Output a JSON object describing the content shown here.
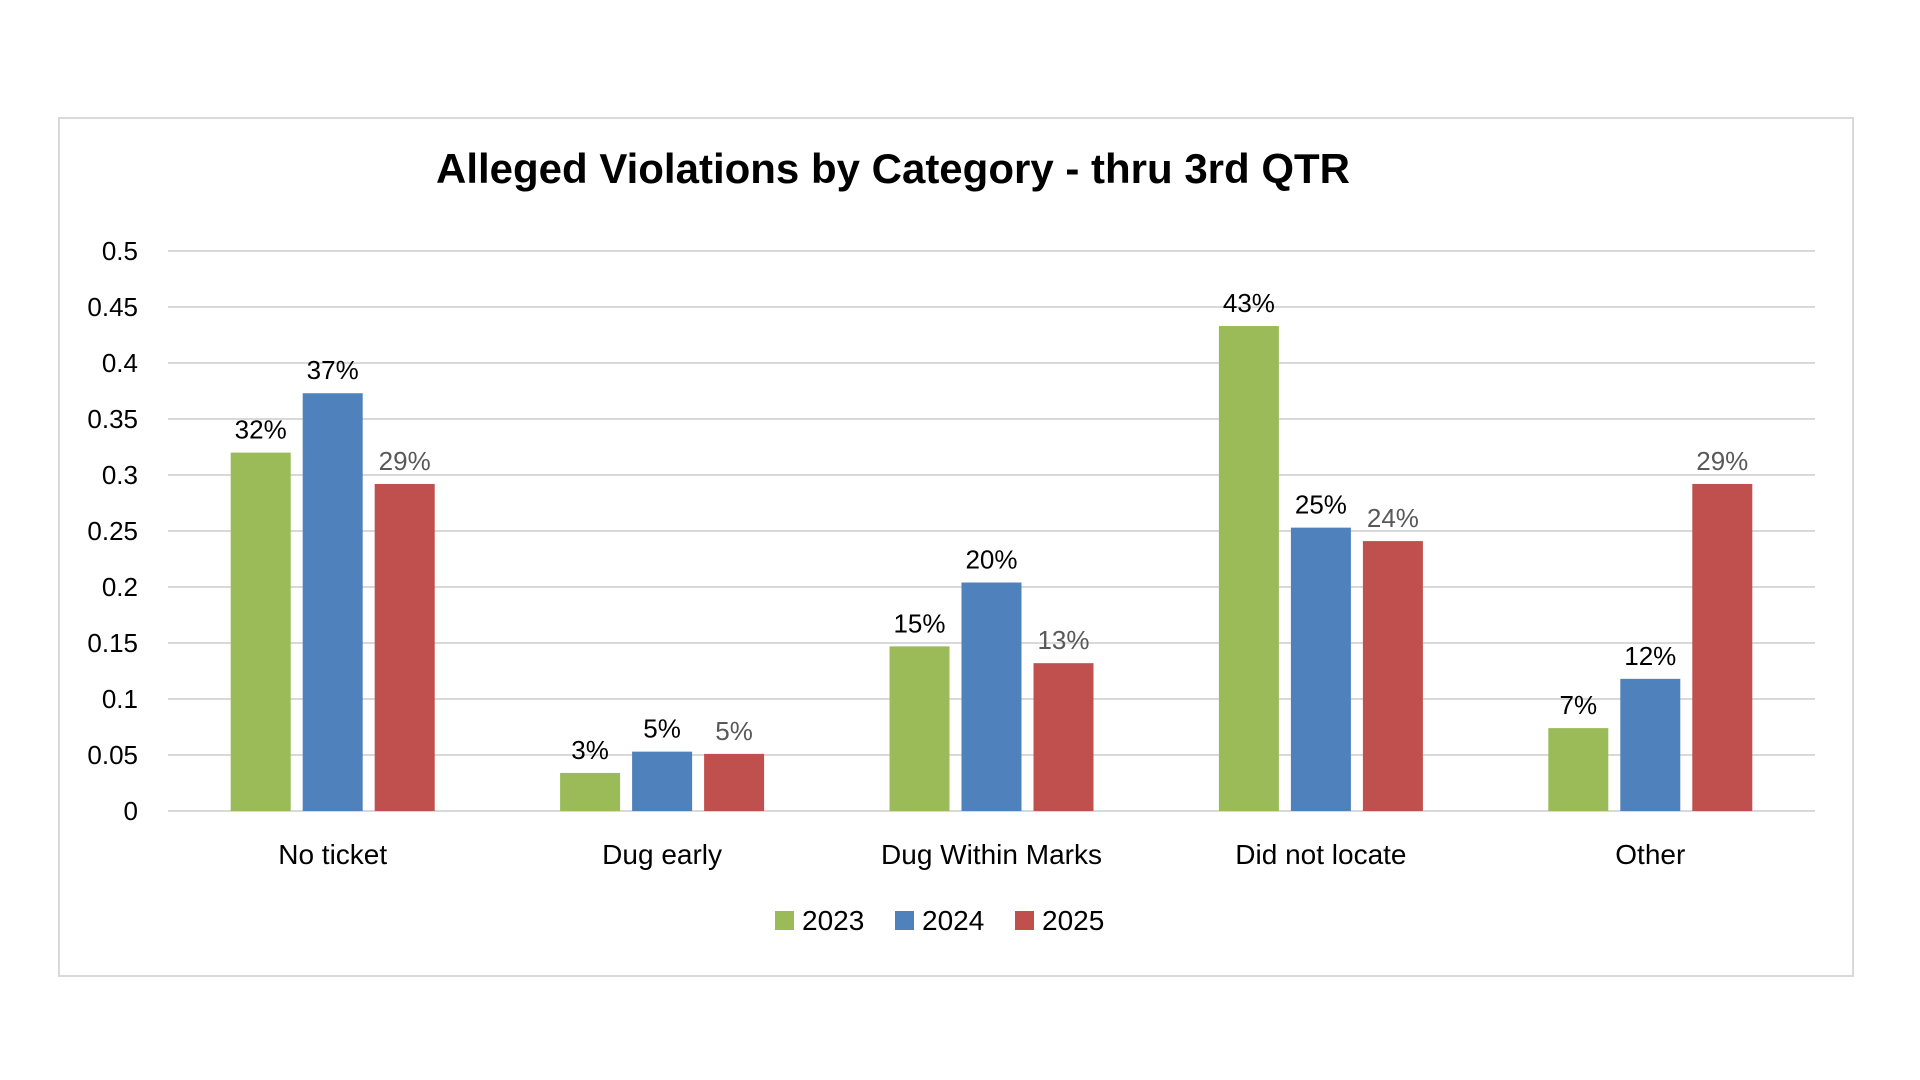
{
  "chart_data": {
    "type": "bar",
    "title": "Alleged Violations by Category - thru 3rd QTR",
    "xlabel": "",
    "ylabel": "",
    "ylim": [
      0,
      0.5
    ],
    "yticks": [
      0,
      0.05,
      0.1,
      0.15,
      0.2,
      0.25,
      0.3,
      0.35,
      0.4,
      0.45,
      0.5
    ],
    "ytick_labels": [
      "0",
      "0.05",
      "0.1",
      "0.15",
      "0.2",
      "0.25",
      "0.3",
      "0.35",
      "0.4",
      "0.45",
      "0.5"
    ],
    "grid": true,
    "legend": "bottom",
    "categories": [
      "No ticket",
      "Dug early",
      "Dug Within Marks",
      "Did not locate",
      "Other"
    ],
    "series": [
      {
        "name": "2023",
        "color": "#9bbb59",
        "label_color": "#000000",
        "values": [
          0.32,
          0.034,
          0.147,
          0.433,
          0.074
        ],
        "labels": [
          "32%",
          "3%",
          "15%",
          "43%",
          "7%"
        ]
      },
      {
        "name": "2024",
        "color": "#4f81bd",
        "label_color": "#000000",
        "values": [
          0.373,
          0.053,
          0.204,
          0.253,
          0.118
        ],
        "labels": [
          "37%",
          "5%",
          "20%",
          "25%",
          "12%"
        ]
      },
      {
        "name": "2025",
        "color": "#c0504d",
        "label_color": "#595959",
        "values": [
          0.292,
          0.051,
          0.132,
          0.241,
          0.292
        ],
        "labels": [
          "29%",
          "5%",
          "13%",
          "24%",
          "29%"
        ]
      }
    ]
  }
}
